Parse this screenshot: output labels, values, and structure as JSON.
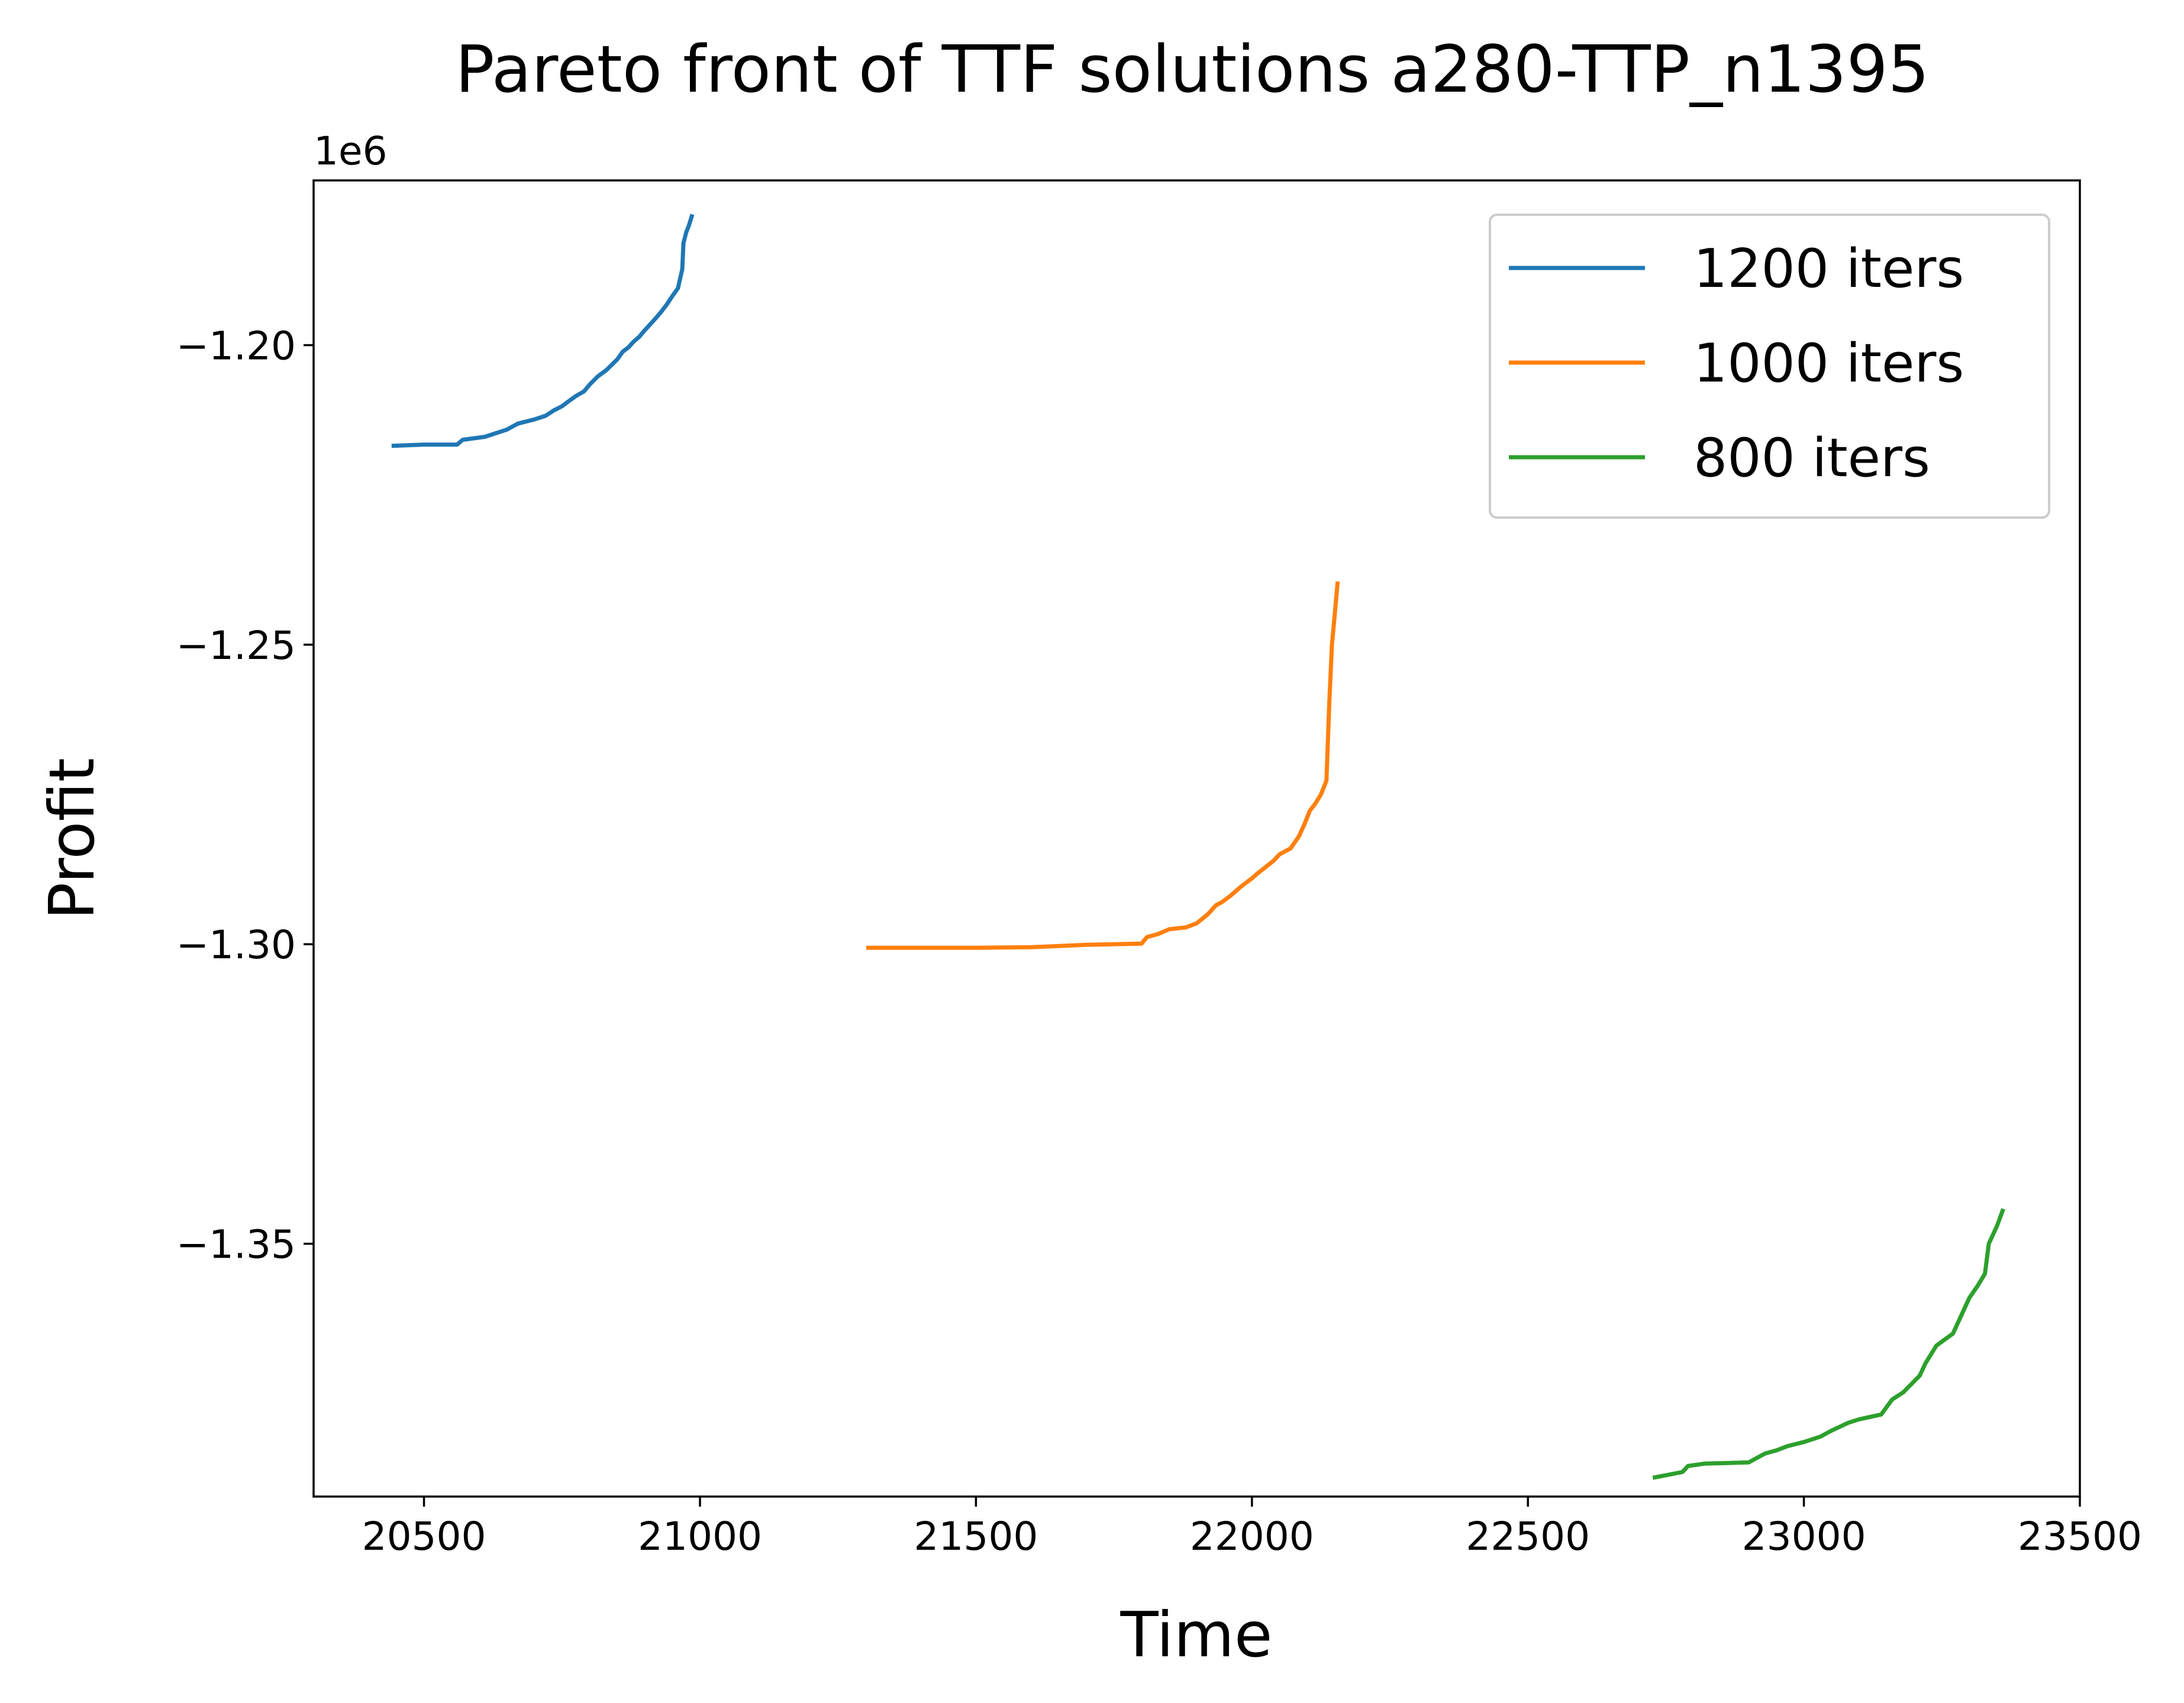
{
  "chart_data": {
    "type": "line",
    "title": "Pareto front of TTF solutions a280-TTP_n1395",
    "xlabel": "Time",
    "ylabel": "Profit",
    "y_offset_label": "1e6",
    "xlim": [
      20300,
      23500
    ],
    "ylim": [
      -1.3922,
      -1.1725
    ],
    "x_ticks": [
      20500,
      21000,
      21500,
      22000,
      22500,
      23000,
      23500
    ],
    "x_tick_labels": [
      "20500",
      "21000",
      "21500",
      "22000",
      "22500",
      "23000",
      "23500"
    ],
    "y_ticks": [
      -1.2,
      -1.25,
      -1.3,
      -1.35
    ],
    "y_tick_labels": [
      "−1.20",
      "−1.25",
      "−1.30",
      "−1.35"
    ],
    "grid": false,
    "legend_position": "top-right",
    "series": [
      {
        "name": "1200 iters",
        "color": "#1f77b4",
        "x": [
          20445,
          20500,
          20560,
          20570,
          20610,
          20650,
          20670,
          20700,
          20720,
          20735,
          20750,
          20760,
          20775,
          20790,
          20800,
          20815,
          20830,
          20850,
          20860,
          20870,
          20880,
          20890,
          20900,
          20910,
          20920,
          20930,
          20940,
          20950,
          20960,
          20968,
          20970,
          20975,
          20980,
          20985
        ],
        "y": [
          -1.2168,
          -1.2166,
          -1.2166,
          -1.2158,
          -1.2153,
          -1.2141,
          -1.2131,
          -1.2124,
          -1.2118,
          -1.2109,
          -1.2102,
          -1.2095,
          -1.2085,
          -1.2077,
          -1.2066,
          -1.2052,
          -1.2042,
          -1.2024,
          -1.2011,
          -1.2004,
          -1.1994,
          -1.1986,
          -1.1975,
          -1.1965,
          -1.1955,
          -1.1944,
          -1.1932,
          -1.1918,
          -1.1905,
          -1.1873,
          -1.183,
          -1.1812,
          -1.18,
          -1.1785
        ]
      },
      {
        "name": "1000 iters",
        "color": "#ff7f0e",
        "x": [
          21305,
          21400,
          21500,
          21600,
          21700,
          21800,
          21810,
          21830,
          21850,
          21880,
          21900,
          21920,
          21935,
          21945,
          21960,
          21980,
          22000,
          22010,
          22040,
          22050,
          22070,
          22085,
          22095,
          22105,
          22115,
          22125,
          22135,
          22140,
          22145,
          22150,
          22155
        ],
        "y": [
          -1.3006,
          -1.3006,
          -1.3006,
          -1.3005,
          -1.3001,
          -1.2999,
          -1.2988,
          -1.2983,
          -1.2975,
          -1.2972,
          -1.2965,
          -1.295,
          -1.2935,
          -1.293,
          -1.292,
          -1.2904,
          -1.289,
          -1.2882,
          -1.286,
          -1.285,
          -1.284,
          -1.282,
          -1.28,
          -1.2777,
          -1.2765,
          -1.275,
          -1.2727,
          -1.26,
          -1.25,
          -1.245,
          -1.2398
        ]
      },
      {
        "name": "800 iters",
        "color": "#2ca02c",
        "x": [
          22730,
          22780,
          22790,
          22820,
          22900,
          22920,
          22930,
          22950,
          22970,
          23000,
          23030,
          23050,
          23080,
          23100,
          23140,
          23160,
          23180,
          23210,
          23220,
          23240,
          23270,
          23290,
          23300,
          23315,
          23328,
          23335,
          23350,
          23360
        ],
        "y": [
          -1.389,
          -1.3881,
          -1.3871,
          -1.3867,
          -1.3865,
          -1.3855,
          -1.385,
          -1.3845,
          -1.3838,
          -1.3831,
          -1.3822,
          -1.3812,
          -1.3799,
          -1.3793,
          -1.3785,
          -1.376,
          -1.3748,
          -1.372,
          -1.37,
          -1.367,
          -1.365,
          -1.361,
          -1.359,
          -1.357,
          -1.355,
          -1.35,
          -1.347,
          -1.3445
        ]
      }
    ]
  }
}
